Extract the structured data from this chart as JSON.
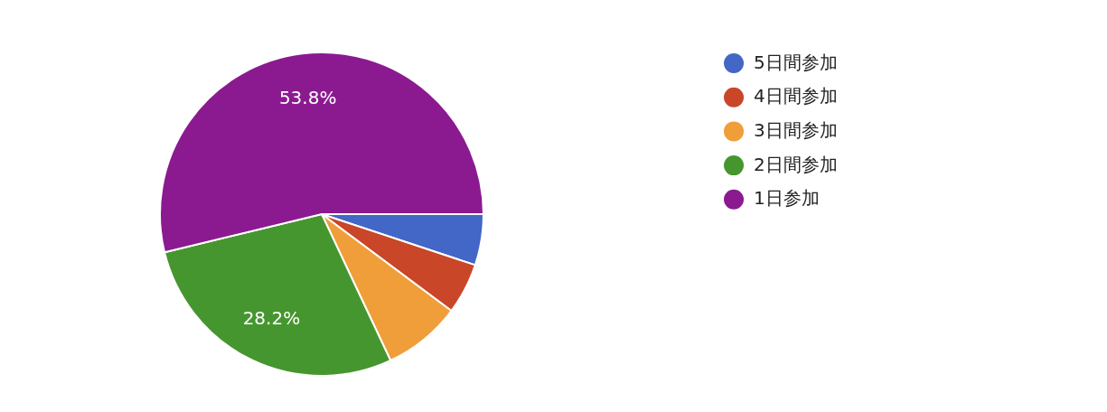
{
  "chart_data": {
    "type": "pie",
    "categories": [
      "5日間参加",
      "4日間参加",
      "3日間参加",
      "2日間参加",
      "1日参加"
    ],
    "values": [
      5.1,
      5.1,
      7.8,
      28.2,
      53.8
    ],
    "colors": [
      "#4267c6",
      "#c94628",
      "#f09e3a",
      "#46962f",
      "#8b1a90"
    ],
    "value_labels": [
      null,
      null,
      null,
      "28.2%",
      "53.8%"
    ],
    "legend": "right"
  }
}
